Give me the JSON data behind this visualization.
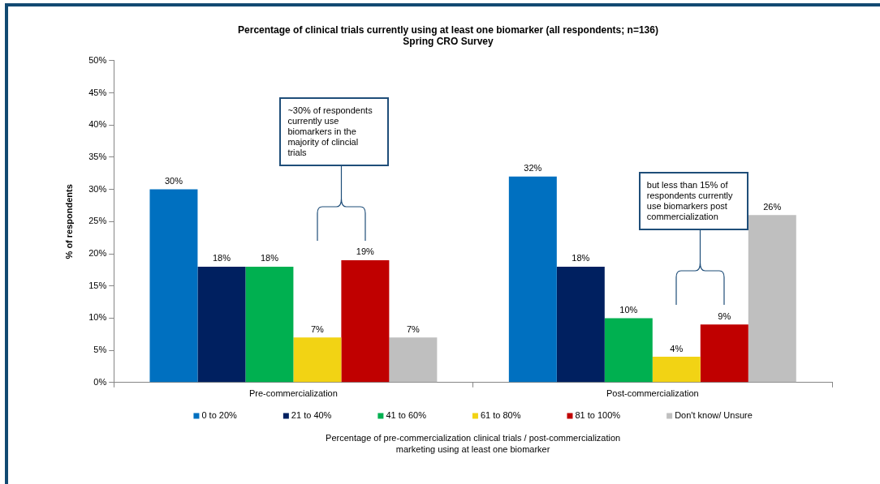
{
  "chart_data": {
    "type": "bar",
    "title": "Percentage of clinical trials currently using at least one biomarker (all respondents; n=136)",
    "subtitle": "Spring CRO Survey",
    "xlabel": "Percentage of pre-commercialization clinical trials / post-commercialization marketing using at least one biomarker",
    "ylabel": "% of respondents",
    "categories": [
      "Pre-commercialization",
      "Post-commercialization"
    ],
    "series": [
      {
        "name": "0 to 20%",
        "color": "#0070c0",
        "values": [
          30,
          32
        ],
        "value_labels": [
          "30%",
          "32%"
        ]
      },
      {
        "name": "21 to 40%",
        "color": "#002060",
        "values": [
          18,
          18
        ],
        "value_labels": [
          "18%",
          "18%"
        ]
      },
      {
        "name": "41 to 60%",
        "color": "#00b050",
        "values": [
          18,
          10
        ],
        "value_labels": [
          "18%",
          "10%"
        ]
      },
      {
        "name": "61 to 80%",
        "color": "#f2d314",
        "values": [
          7,
          4
        ],
        "value_labels": [
          "7%",
          "4%"
        ]
      },
      {
        "name": "81 to 100%",
        "color": "#c00000",
        "values": [
          19,
          9
        ],
        "value_labels": [
          "19%",
          "9%"
        ]
      },
      {
        "name": "Don't know/ Unsure",
        "color": "#bfbfbf",
        "values": [
          7,
          26
        ],
        "value_labels": [
          "7%",
          "26%"
        ]
      }
    ],
    "ylim": [
      0,
      50
    ],
    "yticks": [
      {
        "value": 0,
        "label": "0%"
      },
      {
        "value": 5,
        "label": "5%"
      },
      {
        "value": 10,
        "label": "10%"
      },
      {
        "value": 15,
        "label": "15%"
      },
      {
        "value": 20,
        "label": "20%"
      },
      {
        "value": 25,
        "label": "25%"
      },
      {
        "value": 30,
        "label": "30%"
      },
      {
        "value": 35,
        "label": "35%"
      },
      {
        "value": 40,
        "label": "40%"
      },
      {
        "value": 45,
        "label": "45%"
      },
      {
        "value": 50,
        "label": "50%"
      }
    ],
    "legend": "bottom",
    "annotations": [
      "~30% of respondents currently use biomarkers in the majority of clincial trials",
      "but less than 15% of respondents currently use biomarkers post commercialization"
    ]
  }
}
